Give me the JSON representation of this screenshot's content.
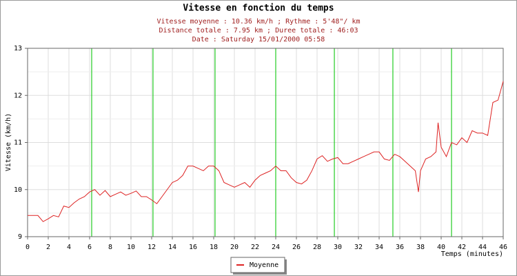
{
  "chart_data": {
    "type": "line",
    "title": "Vitesse en fonction du temps",
    "subtitle": [
      "Vitesse moyenne : 10.36 km/h ; Rythme : 5'48\"/ km",
      "Distance totale : 7.95 km ; Duree totale : 46:03",
      "Date : Saturday 15/01/2000 05:58"
    ],
    "ylabel": "Vitesse (km/h)",
    "xlabel": "Temps (minutes)",
    "xlim": [
      0,
      46
    ],
    "xticks": [
      0,
      2,
      4,
      6,
      8,
      10,
      12,
      14,
      16,
      18,
      20,
      22,
      24,
      26,
      28,
      30,
      32,
      34,
      36,
      38,
      40,
      42,
      44,
      46
    ],
    "ylim": [
      9,
      13
    ],
    "yticks": [
      9,
      10,
      11,
      12,
      13
    ],
    "yminor": [
      9.5,
      10.5,
      11.5,
      12.5
    ],
    "grid": true,
    "markers": [
      6.2,
      12.13,
      18.13,
      24.0,
      29.67,
      35.33,
      41.0
    ],
    "marker_color": "#22cc22",
    "legend": "bottom",
    "series": [
      {
        "name": "Moyenne",
        "color": "#dd2222",
        "x": [
          0,
          0.5,
          1,
          1.5,
          2,
          2.5,
          3,
          3.5,
          4,
          4.5,
          5,
          5.5,
          6,
          6.5,
          7,
          7.5,
          8,
          8.5,
          9,
          9.5,
          10,
          10.5,
          11,
          11.5,
          12,
          12.5,
          13,
          13.5,
          14,
          14.5,
          15,
          15.5,
          16,
          16.5,
          17,
          17.5,
          18,
          18.5,
          19,
          19.5,
          20,
          20.5,
          21,
          21.5,
          22,
          22.5,
          23,
          23.5,
          24,
          24.5,
          25,
          25.5,
          26,
          26.5,
          27,
          27.5,
          28,
          28.5,
          29,
          29.5,
          30,
          30.5,
          31,
          31.5,
          32,
          32.5,
          33,
          33.5,
          34,
          34.5,
          35,
          35.5,
          36,
          36.5,
          37,
          37.5,
          37.8,
          38,
          38.5,
          39,
          39.5,
          39.7,
          40,
          40.5,
          41,
          41.5,
          42,
          42.5,
          43,
          43.5,
          44,
          44.5,
          45,
          45.5,
          46
        ],
        "values": [
          9.45,
          9.45,
          9.45,
          9.32,
          9.38,
          9.45,
          9.42,
          9.65,
          9.62,
          9.72,
          9.8,
          9.85,
          9.95,
          10.0,
          9.88,
          9.98,
          9.85,
          9.9,
          9.95,
          9.88,
          9.92,
          9.97,
          9.85,
          9.85,
          9.78,
          9.7,
          9.85,
          10.0,
          10.15,
          10.2,
          10.3,
          10.5,
          10.5,
          10.45,
          10.4,
          10.5,
          10.5,
          10.4,
          10.15,
          10.1,
          10.05,
          10.1,
          10.15,
          10.05,
          10.2,
          10.3,
          10.35,
          10.4,
          10.5,
          10.4,
          10.4,
          10.25,
          10.15,
          10.12,
          10.2,
          10.4,
          10.65,
          10.72,
          10.6,
          10.65,
          10.68,
          10.55,
          10.55,
          10.6,
          10.65,
          10.7,
          10.75,
          10.8,
          10.8,
          10.65,
          10.62,
          10.75,
          10.7,
          10.6,
          10.5,
          10.4,
          9.95,
          10.4,
          10.65,
          10.7,
          10.8,
          11.42,
          10.9,
          10.7,
          11.0,
          10.95,
          11.1,
          11.0,
          11.25,
          11.2,
          11.2,
          11.15,
          11.85,
          11.9,
          12.3
        ]
      }
    ]
  }
}
